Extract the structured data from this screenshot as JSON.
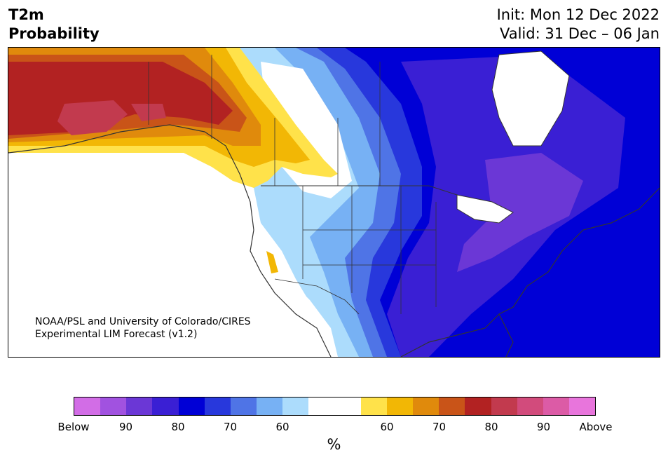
{
  "title": {
    "left_line1": "T2m",
    "left_line2": "Probability",
    "init": "Init: Mon 12 Dec 2022",
    "valid": "Valid: 31 Dec – 06 Jan"
  },
  "credit": {
    "line1": "NOAA/PSL and University of Colorado/CIRES",
    "line2": "Experimental LIM Forecast (v1.2)"
  },
  "colorbar": {
    "colors": [
      "#d26de6",
      "#a152e0",
      "#6b37d6",
      "#3a1fd4",
      "#0000d6",
      "#2838dc",
      "#4f74e6",
      "#77b1f4",
      "#acdcfc",
      "#ffffff",
      "#ffffff",
      "#ffe24a",
      "#f2b705",
      "#e08a0c",
      "#c95418",
      "#b22222",
      "#c23a4e",
      "#d24b7c",
      "#dc5ba6",
      "#e875dc"
    ],
    "tick_labels": [
      "Below",
      "90",
      "80",
      "70",
      "60",
      "60",
      "70",
      "80",
      "90",
      "Above"
    ],
    "unit": "%"
  }
}
